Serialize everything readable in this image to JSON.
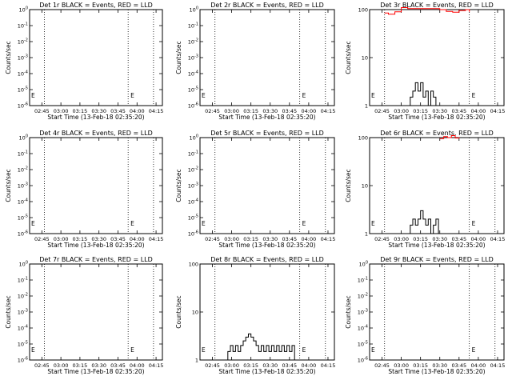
{
  "chart_data": [
    {
      "type": "line",
      "title": "Det 1r BLACK = Events, RED = LLD",
      "xlabel": "Start Time (13-Feb-18 02:35:20)",
      "ylabel": "Counts/sec",
      "x_ticks": [
        "02:45",
        "03:00",
        "03:15",
        "03:30",
        "03:45",
        "04:00",
        "04:15"
      ],
      "y_scale": "log",
      "ylim": [
        1,
        1e-06
      ],
      "y_ticks": [
        "10^-6",
        "10^-5",
        "10^-4",
        "10^-3",
        "10^-2",
        "10^-1",
        "10^0"
      ],
      "markers": [
        "02:47",
        "03:53",
        "04:13"
      ],
      "series": [],
      "annotation": "E"
    },
    {
      "type": "line",
      "title": "Det 2r BLACK = Events, RED = LLD",
      "xlabel": "Start Time (13-Feb-18 02:35:20)",
      "ylabel": "Counts/sec",
      "x_ticks": [
        "02:45",
        "03:00",
        "03:15",
        "03:30",
        "03:45",
        "04:00",
        "04:15"
      ],
      "y_scale": "log",
      "ylim": [
        1,
        1e-06
      ],
      "y_ticks": [
        "10^-6",
        "10^-5",
        "10^-4",
        "10^-3",
        "10^-2",
        "10^-1",
        "10^0"
      ],
      "markers": [
        "02:47",
        "03:53",
        "04:13"
      ],
      "series": [],
      "annotation": "E"
    },
    {
      "type": "line",
      "title": "Det 3r BLACK = Events, RED = LLD",
      "xlabel": "Start Time (13-Feb-18 02:35:20)",
      "ylabel": "Counts/sec",
      "x_ticks": [
        "02:45",
        "03:00",
        "03:15",
        "03:30",
        "03:45",
        "04:00",
        "04:15"
      ],
      "y_scale": "log",
      "ylim": [
        1,
        100
      ],
      "y_ticks": [
        "1",
        "10",
        "100"
      ],
      "markers": [
        "02:47",
        "03:53",
        "04:13"
      ],
      "series": [
        {
          "color": "#000000",
          "x": [
            "02:47",
            "03:05",
            "03:07",
            "03:09",
            "03:11",
            "03:13",
            "03:15",
            "03:17",
            "03:19",
            "03:21",
            "03:23",
            "03:25",
            "03:27",
            "03:29",
            "03:53"
          ],
          "y": [
            1,
            1,
            1.5,
            2,
            3,
            2,
            3,
            1.5,
            2,
            1,
            2,
            1.5,
            1,
            1,
            1
          ]
        },
        {
          "color": "#ff0000",
          "x": [
            "02:47",
            "02:50",
            "02:55",
            "03:00",
            "03:05",
            "03:30",
            "03:35",
            "03:40",
            "03:45",
            "03:50",
            "03:53"
          ],
          "y": [
            85,
            80,
            90,
            110,
            105,
            100,
            92,
            88,
            95,
            100,
            90
          ]
        }
      ],
      "annotation": "E"
    },
    {
      "type": "line",
      "title": "Det 4r BLACK = Events, RED = LLD",
      "xlabel": "Start Time (13-Feb-18 02:35:20)",
      "ylabel": "Counts/sec",
      "x_ticks": [
        "02:45",
        "03:00",
        "03:15",
        "03:30",
        "03:45",
        "04:00",
        "04:15"
      ],
      "y_scale": "log",
      "ylim": [
        1,
        1e-06
      ],
      "y_ticks": [
        "10^-6",
        "10^-5",
        "10^-4",
        "10^-3",
        "10^-2",
        "10^-1",
        "10^0"
      ],
      "markers": [
        "02:47",
        "03:53",
        "04:13"
      ],
      "series": [],
      "annotation": "E"
    },
    {
      "type": "line",
      "title": "Det 5r BLACK = Events, RED = LLD",
      "xlabel": "Start Time (13-Feb-18 02:35:20)",
      "ylabel": "Counts/sec",
      "x_ticks": [
        "02:45",
        "03:00",
        "03:15",
        "03:30",
        "03:45",
        "04:00",
        "04:15"
      ],
      "y_scale": "log",
      "ylim": [
        1,
        1e-06
      ],
      "y_ticks": [
        "10^-6",
        "10^-5",
        "10^-4",
        "10^-3",
        "10^-2",
        "10^-1",
        "10^0"
      ],
      "markers": [
        "02:47",
        "03:53",
        "04:13"
      ],
      "series": [],
      "annotation": "E"
    },
    {
      "type": "line",
      "title": "Det 6r BLACK = Events, RED = LLD",
      "xlabel": "Start Time (13-Feb-18 02:35:20)",
      "ylabel": "Counts/sec",
      "x_ticks": [
        "02:45",
        "03:00",
        "03:15",
        "03:30",
        "03:45",
        "04:00",
        "04:15"
      ],
      "y_scale": "log",
      "ylim": [
        1,
        100
      ],
      "y_ticks": [
        "1",
        "10",
        "100"
      ],
      "markers": [
        "02:47",
        "03:53",
        "04:13"
      ],
      "series": [
        {
          "color": "#000000",
          "x": [
            "02:47",
            "03:05",
            "03:07",
            "03:09",
            "03:11",
            "03:13",
            "03:15",
            "03:17",
            "03:19",
            "03:21",
            "03:23",
            "03:25",
            "03:27",
            "03:29",
            "03:31",
            "03:53"
          ],
          "y": [
            1,
            1,
            1.5,
            2,
            1.5,
            2,
            3,
            2,
            1.5,
            2,
            1,
            1.5,
            2,
            1,
            1,
            1
          ]
        },
        {
          "color": "#ff0000",
          "x": [
            "03:30",
            "03:33",
            "03:36",
            "03:39",
            "03:42",
            "03:45"
          ],
          "y": [
            95,
            105,
            100,
            110,
            98,
            102
          ]
        }
      ],
      "annotation": "E"
    },
    {
      "type": "line",
      "title": "Det 7r BLACK = Events, RED = LLD",
      "xlabel": "Start Time (13-Feb-18 02:35:20)",
      "ylabel": "Counts/sec",
      "x_ticks": [
        "02:45",
        "03:00",
        "03:15",
        "03:30",
        "03:45",
        "04:00",
        "04:15"
      ],
      "y_scale": "log",
      "ylim": [
        1,
        1e-06
      ],
      "y_ticks": [
        "10^-6",
        "10^-5",
        "10^-4",
        "10^-3",
        "10^-2",
        "10^-1",
        "10^0"
      ],
      "markers": [
        "02:47",
        "03:53",
        "04:13"
      ],
      "series": [],
      "annotation": "E"
    },
    {
      "type": "line",
      "title": "Det 8r BLACK = Events, RED = LLD",
      "xlabel": "Start Time (13-Feb-18 02:35:20)",
      "ylabel": "Counts/sec",
      "x_ticks": [
        "02:45",
        "03:00",
        "03:15",
        "03:30",
        "03:45",
        "04:00",
        "04:15"
      ],
      "y_scale": "log",
      "ylim": [
        1,
        100
      ],
      "y_ticks": [
        "1",
        "10",
        "100"
      ],
      "markers": [
        "02:47",
        "03:53",
        "04:13"
      ],
      "series": [
        {
          "color": "#000000",
          "x": [
            "02:47",
            "02:55",
            "02:57",
            "02:59",
            "03:01",
            "03:03",
            "03:05",
            "03:07",
            "03:09",
            "03:11",
            "03:13",
            "03:15",
            "03:17",
            "03:19",
            "03:21",
            "03:23",
            "03:25",
            "03:27",
            "03:29",
            "03:31",
            "03:33",
            "03:35",
            "03:37",
            "03:39",
            "03:41",
            "03:43",
            "03:45",
            "03:47",
            "03:49",
            "03:53"
          ],
          "y": [
            1,
            1,
            1.5,
            2,
            1.5,
            2,
            1.5,
            2,
            2.5,
            3,
            3.5,
            3,
            2.5,
            2,
            1.5,
            2,
            1.5,
            2,
            1.5,
            2,
            1.5,
            2,
            1.5,
            2,
            1.5,
            2,
            1.5,
            2,
            1,
            1
          ]
        }
      ],
      "annotation": "E"
    },
    {
      "type": "line",
      "title": "Det 9r BLACK = Events, RED = LLD",
      "xlabel": "Start Time (13-Feb-18 02:35:20)",
      "ylabel": "Counts/sec",
      "x_ticks": [
        "02:45",
        "03:00",
        "03:15",
        "03:30",
        "03:45",
        "04:00",
        "04:15"
      ],
      "y_scale": "log",
      "ylim": [
        1,
        1e-06
      ],
      "y_ticks": [
        "10^-6",
        "10^-5",
        "10^-4",
        "10^-3",
        "10^-2",
        "10^-1",
        "10^0"
      ],
      "markers": [
        "02:47",
        "03:53",
        "04:13"
      ],
      "series": [],
      "annotation": "E"
    }
  ]
}
